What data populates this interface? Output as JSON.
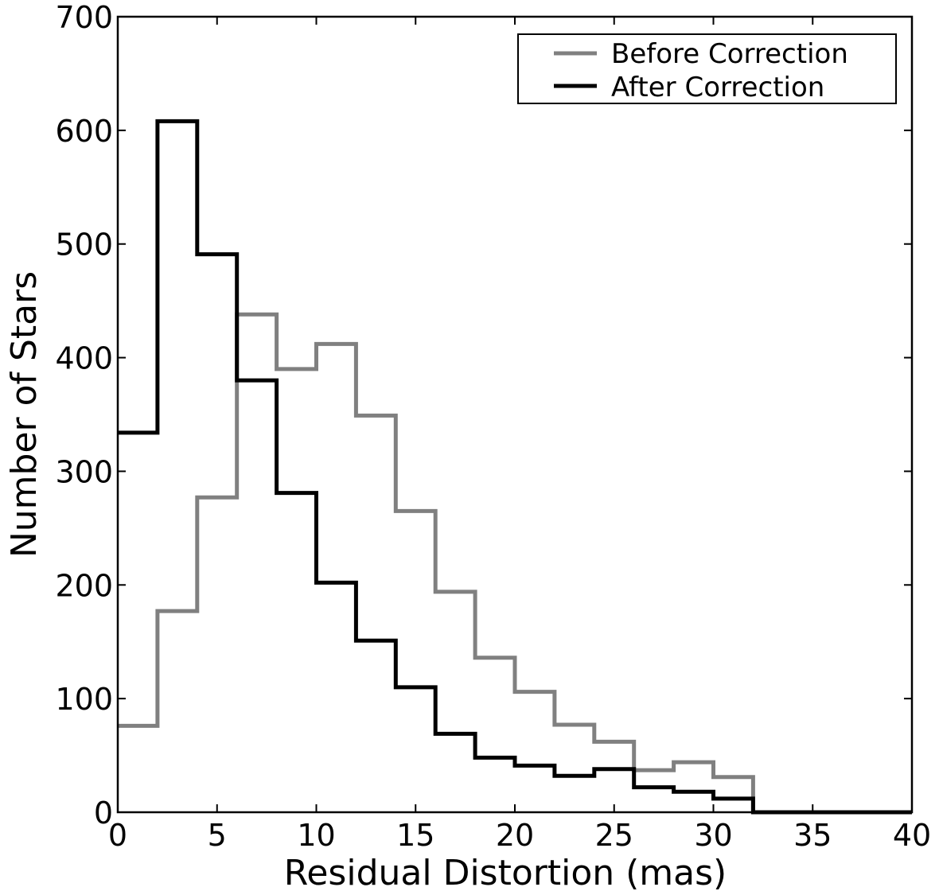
{
  "chart_data": {
    "type": "histogram-step",
    "xlabel": "Residual Distortion (mas)",
    "ylabel": "Number of Stars",
    "xlim": [
      0,
      40
    ],
    "ylim": [
      0,
      700
    ],
    "xticks": [
      0,
      5,
      10,
      15,
      20,
      25,
      30,
      35,
      40
    ],
    "yticks": [
      0,
      100,
      200,
      300,
      400,
      500,
      600,
      700
    ],
    "bin_edges": [
      0,
      2,
      4,
      6,
      8,
      10,
      12,
      14,
      16,
      18,
      20,
      22,
      24,
      26,
      28,
      30,
      32,
      34,
      36,
      38,
      40
    ],
    "grid": false,
    "legend_position": "top-right",
    "series": [
      {
        "name": "Before Correction",
        "color": "#808080",
        "values": [
          76,
          177,
          277,
          438,
          390,
          412,
          349,
          265,
          194,
          136,
          106,
          77,
          62,
          37,
          44,
          31,
          0,
          0,
          0,
          0
        ]
      },
      {
        "name": "After Correction",
        "color": "#000000",
        "values": [
          334,
          608,
          491,
          380,
          281,
          202,
          151,
          110,
          69,
          48,
          41,
          32,
          38,
          22,
          18,
          12,
          0,
          0,
          0,
          0
        ]
      }
    ]
  }
}
